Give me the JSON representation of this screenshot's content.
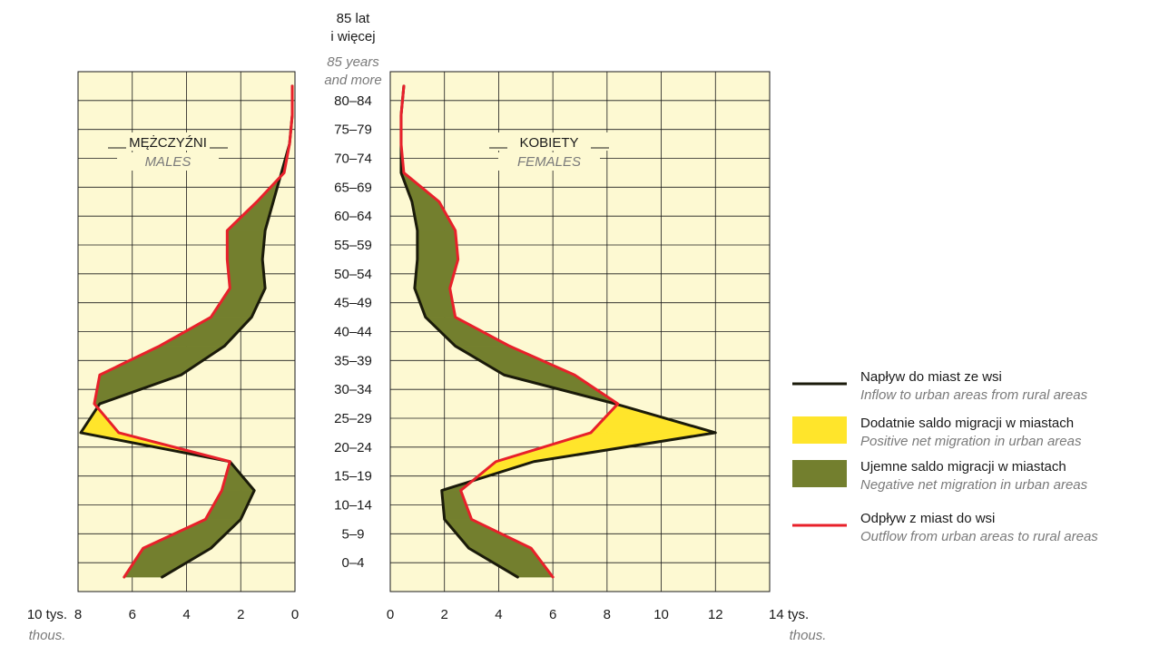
{
  "chart_data": {
    "type": "area",
    "age_groups": [
      "0–4",
      "5–9",
      "10–14",
      "15–19",
      "20–24",
      "25–29",
      "30–34",
      "35–39",
      "40–44",
      "45–49",
      "50–54",
      "55–59",
      "60–64",
      "65–69",
      "70–74",
      "75–79",
      "80–84"
    ],
    "top_age_label": [
      "85 lat",
      "i więcej"
    ],
    "top_age_label_en": [
      "85 years",
      "and more"
    ],
    "males": {
      "title": "MĘŻCZYŹNI",
      "title_en": "MALES",
      "inflow": [
        4.9,
        3.1,
        2.0,
        1.5,
        2.4,
        7.9,
        7.2,
        4.2,
        2.6,
        1.6,
        1.1,
        1.2,
        1.1,
        0.8,
        0.5,
        0.2,
        0.1,
        0.1
      ],
      "outflow": [
        6.3,
        5.6,
        3.3,
        2.7,
        2.4,
        6.5,
        7.4,
        7.2,
        5.0,
        3.1,
        2.4,
        2.5,
        2.5,
        1.4,
        0.4,
        0.2,
        0.1,
        0.1
      ],
      "xlim": [
        0,
        8
      ],
      "ticks": [
        8,
        6,
        4,
        2,
        0
      ]
    },
    "females": {
      "title": "KOBIETY",
      "title_en": "FEMALES",
      "inflow": [
        4.7,
        2.9,
        2.0,
        1.9,
        5.3,
        12.0,
        8.3,
        4.2,
        2.4,
        1.3,
        0.9,
        1.0,
        1.0,
        0.8,
        0.4,
        0.4,
        0.4,
        0.5
      ],
      "outflow": [
        6.0,
        5.2,
        3.0,
        2.6,
        3.9,
        7.4,
        8.4,
        6.8,
        4.4,
        2.4,
        2.2,
        2.5,
        2.4,
        1.8,
        0.5,
        0.4,
        0.4,
        0.5
      ],
      "xlim": [
        0,
        14
      ],
      "ticks": [
        0,
        2,
        4,
        6,
        8,
        10,
        12
      ]
    },
    "axis_unit_left": "10 tys.",
    "axis_unit_right": "14 tys.",
    "axis_unit_en": "thous.",
    "legend": [
      {
        "key": "inflow",
        "label": "Napływ do miast ze wsi",
        "label_en": "Inflow to urban areas from rural areas",
        "color": "#1a1a0a"
      },
      {
        "key": "positive",
        "label": "Dodatnie saldo migracji w miastach",
        "label_en": "Positive net migration in urban areas",
        "color": "#ffe52b"
      },
      {
        "key": "negative",
        "label": "Ujemne saldo migracji w miastach",
        "label_en": "Negative net migration in urban areas",
        "color": "#737f2e"
      },
      {
        "key": "outflow",
        "label": "Odpływ z miast do wsi",
        "label_en": "Outflow from urban areas to rural areas",
        "color": "#e8202a"
      }
    ],
    "colors": {
      "panel_bg": "#fdf9d2",
      "grid": "#1a1a1a",
      "inflow": "#1a1a0a",
      "outflow": "#e8202a",
      "positive": "#ffe52b",
      "negative": "#737f2e"
    },
    "legend_position": "right"
  }
}
